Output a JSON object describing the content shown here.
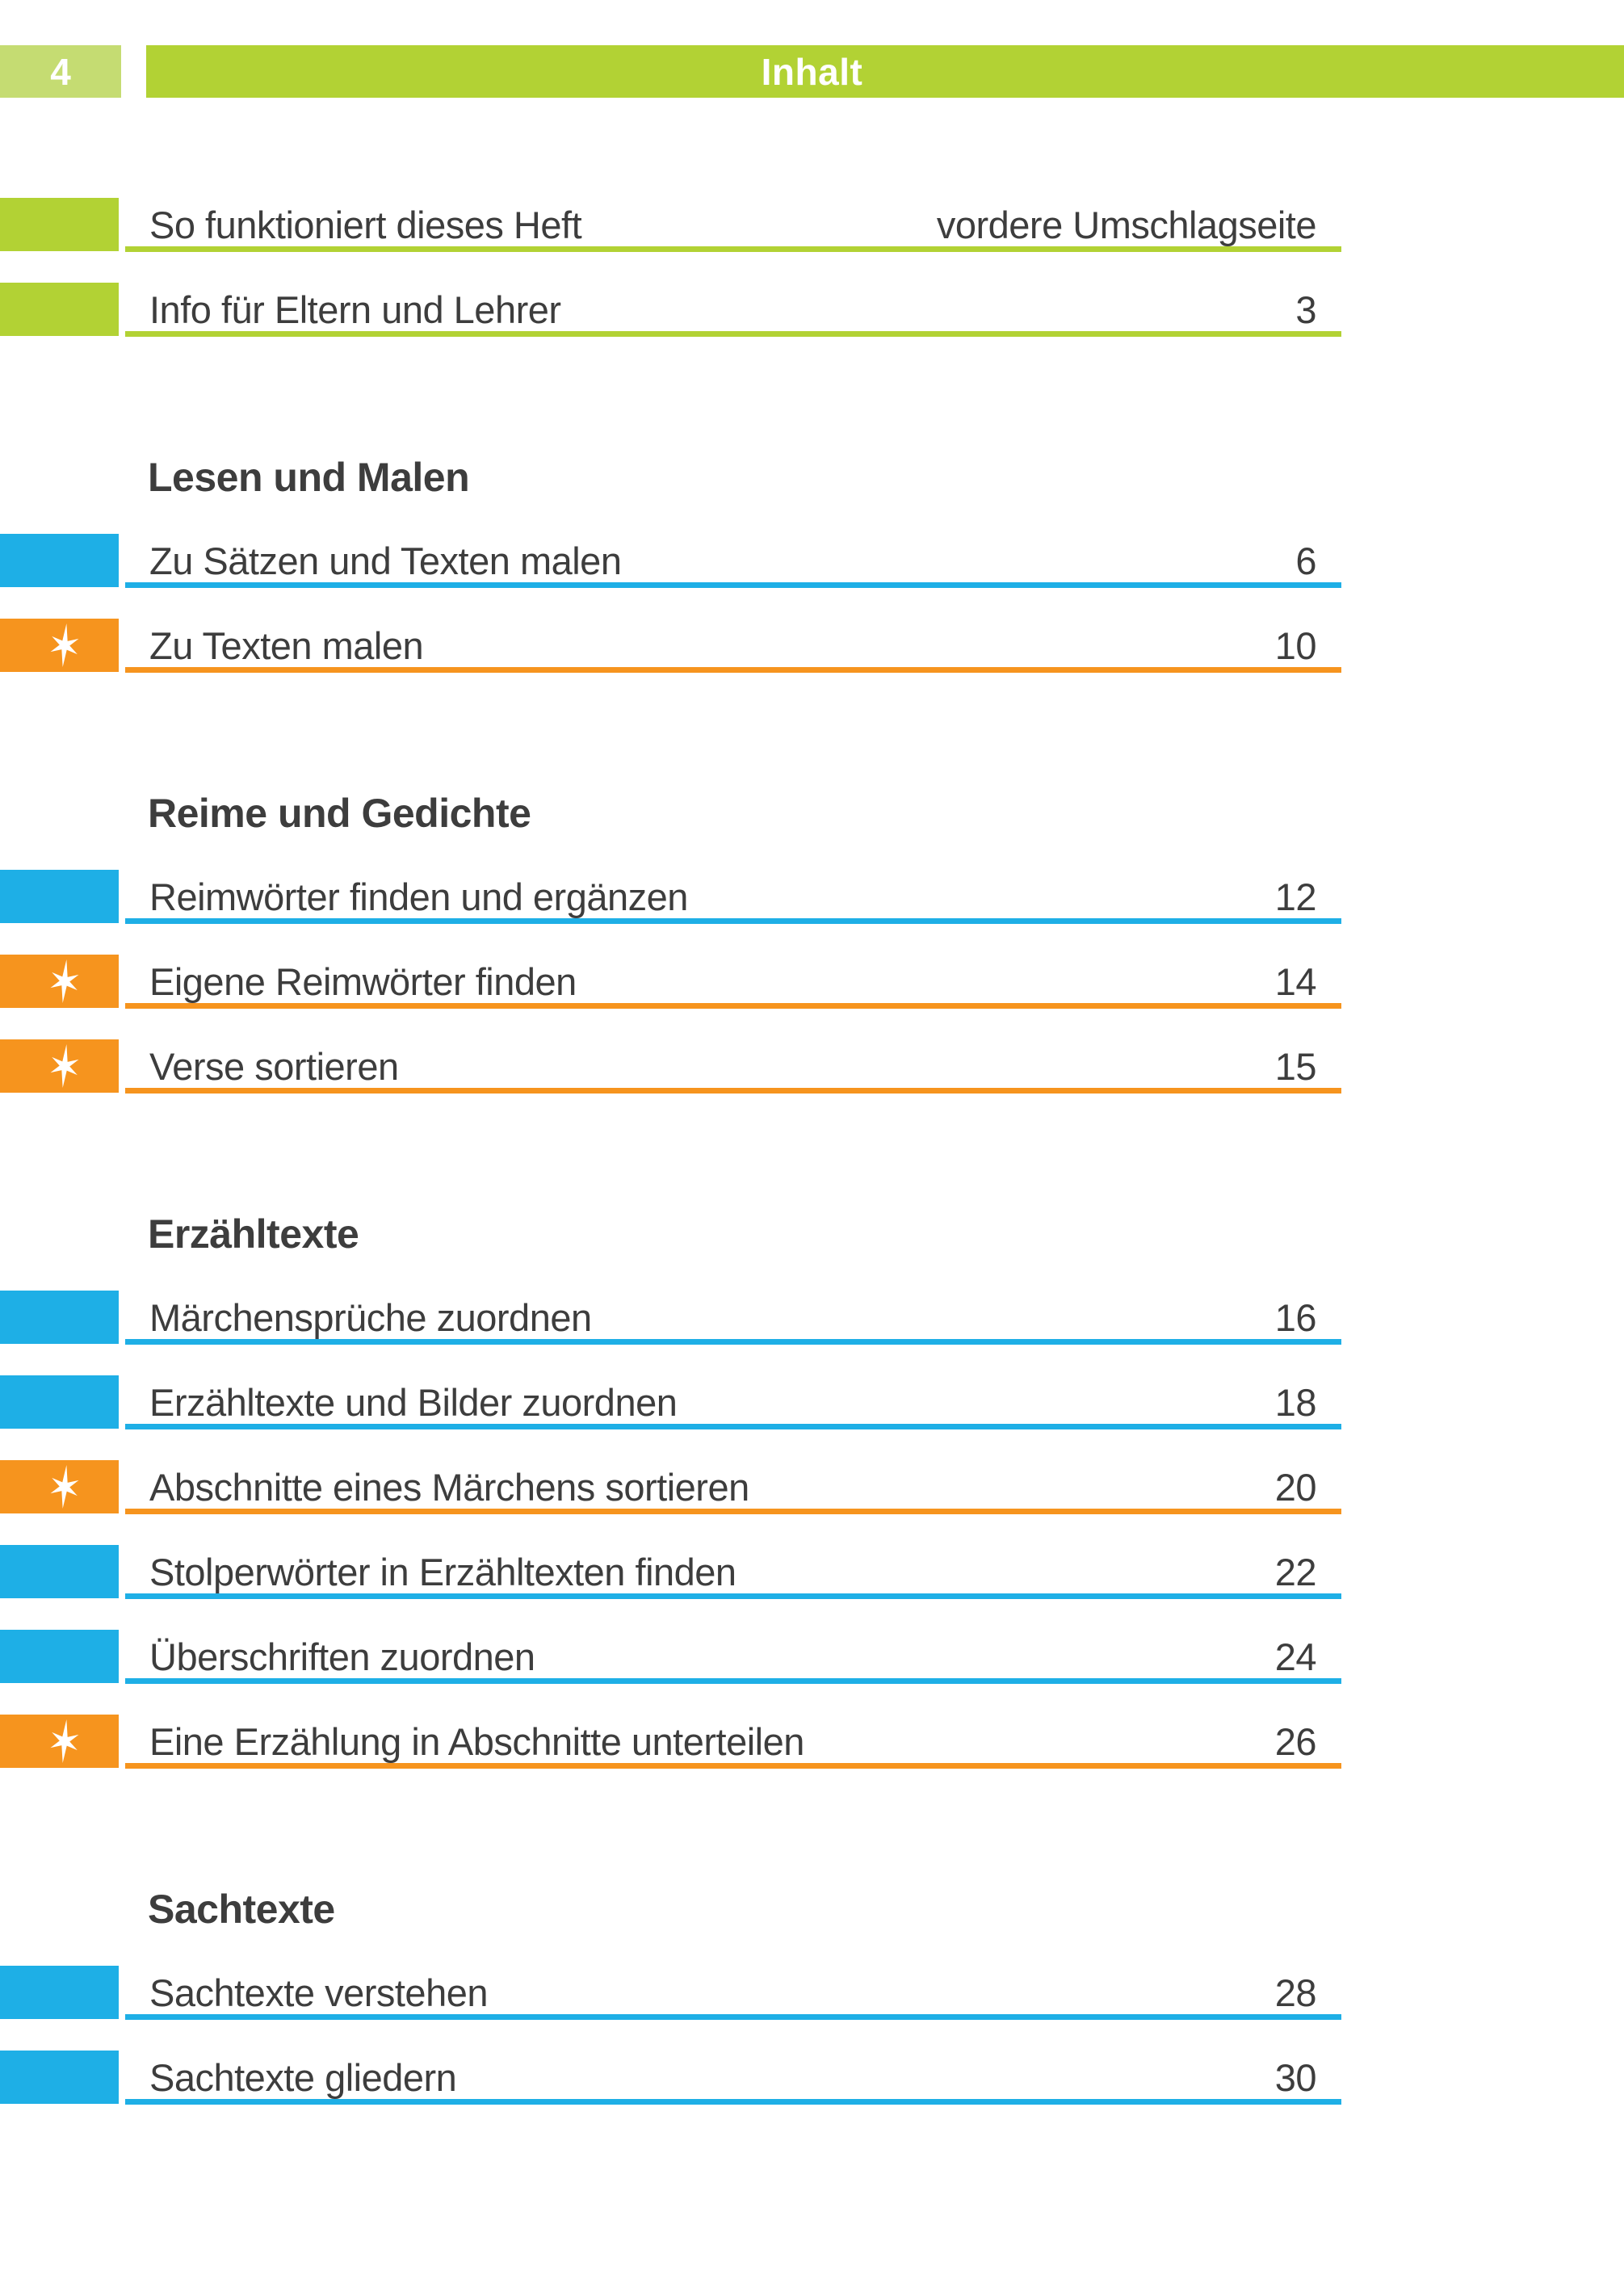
{
  "page": {
    "number": "4",
    "header_title": "Inhalt"
  },
  "colors": {
    "green": "#b2d234",
    "green_light": "#c5dc72",
    "blue": "#1eafe6",
    "orange": "#f6941e",
    "text": "#3d3d3d",
    "header_text": "#ffffff"
  },
  "icons": {
    "star": "six-point-star-icon"
  },
  "toc": {
    "sections": [
      {
        "heading": "",
        "entries": [
          {
            "title": "So funktioniert dieses Heft",
            "page": "vordere Umschlagseite",
            "marker": "green",
            "star": false
          },
          {
            "title": "Info für Eltern und Lehrer",
            "page": "3",
            "marker": "green",
            "star": false
          }
        ]
      },
      {
        "heading": "Lesen und Malen",
        "entries": [
          {
            "title": "Zu Sätzen und Texten malen",
            "page": "6",
            "marker": "blue",
            "star": false
          },
          {
            "title": "Zu Texten malen",
            "page": "10",
            "marker": "orange",
            "star": true
          }
        ]
      },
      {
        "heading": "Reime und Gedichte",
        "entries": [
          {
            "title": "Reimwörter finden und ergänzen",
            "page": "12",
            "marker": "blue",
            "star": false
          },
          {
            "title": "Eigene Reimwörter finden",
            "page": "14",
            "marker": "orange",
            "star": true
          },
          {
            "title": "Verse sortieren",
            "page": "15",
            "marker": "orange",
            "star": true
          }
        ]
      },
      {
        "heading": "Erzähltexte",
        "entries": [
          {
            "title": "Märchensprüche zuordnen",
            "page": "16",
            "marker": "blue",
            "star": false
          },
          {
            "title": "Erzähltexte und Bilder zuordnen",
            "page": "18",
            "marker": "blue",
            "star": false
          },
          {
            "title": "Abschnitte eines Märchens sortieren",
            "page": "20",
            "marker": "orange",
            "star": true
          },
          {
            "title": "Stolperwörter in Erzähltexten finden",
            "page": "22",
            "marker": "blue",
            "star": false
          },
          {
            "title": "Überschriften zuordnen",
            "page": "24",
            "marker": "blue",
            "star": false
          },
          {
            "title": "Eine Erzählung in Abschnitte unterteilen",
            "page": "26",
            "marker": "orange",
            "star": true
          }
        ]
      },
      {
        "heading": "Sachtexte",
        "entries": [
          {
            "title": "Sachtexte verstehen",
            "page": "28",
            "marker": "blue",
            "star": false
          },
          {
            "title": "Sachtexte gliedern",
            "page": "30",
            "marker": "blue",
            "star": false
          }
        ]
      }
    ]
  }
}
